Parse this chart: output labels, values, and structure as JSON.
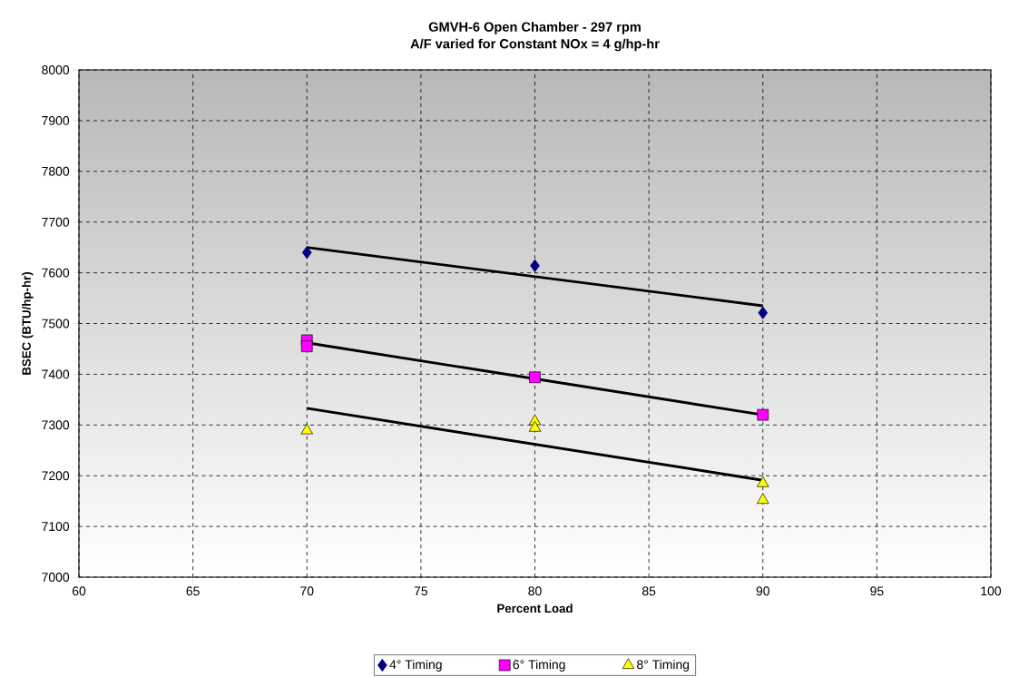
{
  "chart_data": {
    "type": "scatter",
    "title": "GMVH-6 Open Chamber - 297 rpm",
    "subtitle": "A/F varied for Constant NOx = 4 g/hp-hr",
    "xlabel": "Percent Load",
    "ylabel": "BSEC (BTU/hp-hr)",
    "xlim": [
      60,
      100
    ],
    "xticks": [
      60,
      65,
      70,
      75,
      80,
      85,
      90,
      95,
      100
    ],
    "ylim": [
      7000,
      8000
    ],
    "yticks": [
      7000,
      7100,
      7200,
      7300,
      7400,
      7500,
      7600,
      7700,
      7800,
      7900,
      8000
    ],
    "grid": true,
    "legend": "bottom",
    "series": [
      {
        "name": "4° Timing",
        "color": "#000080",
        "marker": "diamond",
        "x": [
          70,
          80,
          90
        ],
        "values": [
          7640,
          7614,
          7521
        ]
      },
      {
        "name": "6° Timing",
        "color": "#ff00ff",
        "marker": "square",
        "x": [
          70,
          70,
          80,
          90
        ],
        "values": [
          7467,
          7455,
          7394,
          7320
        ]
      },
      {
        "name": "8° Timing",
        "color": "#ffff00",
        "marker": "triangle",
        "x": [
          70,
          80,
          80,
          90,
          90
        ],
        "values": [
          7289,
          7307,
          7294,
          7185,
          7152
        ]
      },
      {
        "type": "line",
        "color": "#000000",
        "marker": "none",
        "line_style": "solid",
        "x": [
          70,
          90
        ],
        "values": [
          7650,
          7535
        ]
      },
      {
        "type": "line",
        "color": "#000000",
        "marker": "none",
        "line_style": "solid",
        "x": [
          70,
          90
        ],
        "values": [
          7462,
          7320
        ]
      },
      {
        "type": "line",
        "color": "#000000",
        "marker": "none",
        "line_style": "solid",
        "x": [
          70,
          90
        ],
        "values": [
          7333,
          7191
        ]
      }
    ]
  }
}
